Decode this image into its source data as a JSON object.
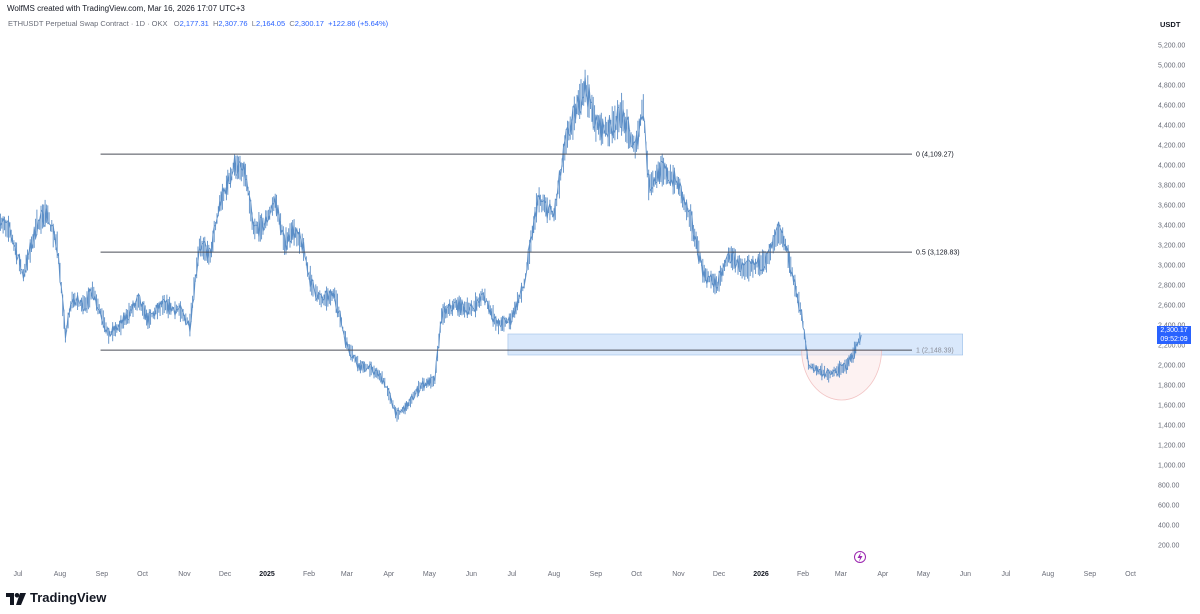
{
  "header": {
    "author_line": "WolfMS created with TradingView.com, Mar 16, 2026 17:07 UTC+3",
    "symbol": "ETHUSDT Perpetual Swap Contract · 1D · OKX",
    "ohlc": {
      "o_label": "O",
      "o": "2,177.31",
      "h_label": "H",
      "h": "2,307.76",
      "l_label": "L",
      "l": "2,164.05",
      "c_label": "C",
      "c": "2,300.17",
      "change": "+122.86 (+5.64%)"
    },
    "currency": "USDT"
  },
  "price_tag": {
    "price": "2,300.17",
    "countdown": "09:52:09",
    "value": 2300.17
  },
  "footer": {
    "brand": "TradingView"
  },
  "colors": {
    "candle": "#5b8ec7",
    "candle_dark": "#6f7f94",
    "zone": "#cfe2fa",
    "arc": "#f2c4c4",
    "accent": "#2962ff"
  },
  "chart_data": {
    "type": "line",
    "title": "",
    "xlabel": "",
    "ylabel": "",
    "ylim": [
      0,
      5300
    ],
    "y_ticks": [
      "5,200.00",
      "5,000.00",
      "4,800.00",
      "4,600.00",
      "4,400.00",
      "4,200.00",
      "4,000.00",
      "3,800.00",
      "3,600.00",
      "3,400.00",
      "3,200.00",
      "3,000.00",
      "2,800.00",
      "2,600.00",
      "2,400.00",
      "2,200.00",
      "2,000.00",
      "1,800.00",
      "1,600.00",
      "1,400.00",
      "1,200.00",
      "1,000.00",
      "800.00",
      "600.00",
      "400.00",
      "200.00"
    ],
    "x_ticks": [
      {
        "label": "Jul",
        "x": "2024-07-01",
        "bold": false
      },
      {
        "label": "Aug",
        "x": "2024-08-01",
        "bold": false
      },
      {
        "label": "Sep",
        "x": "2024-09-01",
        "bold": false
      },
      {
        "label": "Oct",
        "x": "2024-10-01",
        "bold": false
      },
      {
        "label": "Nov",
        "x": "2024-11-01",
        "bold": false
      },
      {
        "label": "Dec",
        "x": "2024-12-01",
        "bold": false
      },
      {
        "label": "2025",
        "x": "2025-01-01",
        "bold": true
      },
      {
        "label": "Feb",
        "x": "2025-02-01",
        "bold": false
      },
      {
        "label": "Mar",
        "x": "2025-03-01",
        "bold": false
      },
      {
        "label": "Apr",
        "x": "2025-04-01",
        "bold": false
      },
      {
        "label": "May",
        "x": "2025-05-01",
        "bold": false
      },
      {
        "label": "Jun",
        "x": "2025-06-01",
        "bold": false
      },
      {
        "label": "Jul",
        "x": "2025-07-01",
        "bold": false
      },
      {
        "label": "Aug",
        "x": "2025-08-01",
        "bold": false
      },
      {
        "label": "Sep",
        "x": "2025-09-01",
        "bold": false
      },
      {
        "label": "Oct",
        "x": "2025-10-01",
        "bold": false
      },
      {
        "label": "Nov",
        "x": "2025-11-01",
        "bold": false
      },
      {
        "label": "Dec",
        "x": "2025-12-01",
        "bold": false
      },
      {
        "label": "2026",
        "x": "2026-01-01",
        "bold": true
      },
      {
        "label": "Feb",
        "x": "2026-02-01",
        "bold": false
      },
      {
        "label": "Mar",
        "x": "2026-03-01",
        "bold": false
      },
      {
        "label": "Apr",
        "x": "2026-04-01",
        "bold": false
      },
      {
        "label": "May",
        "x": "2026-05-01",
        "bold": false
      },
      {
        "label": "Jun",
        "x": "2026-06-01",
        "bold": false
      },
      {
        "label": "Jul",
        "x": "2026-07-01",
        "bold": false
      },
      {
        "label": "Aug",
        "x": "2026-08-01",
        "bold": false
      },
      {
        "label": "Sep",
        "x": "2026-09-01",
        "bold": false
      },
      {
        "label": "Oct",
        "x": "2026-10-01",
        "bold": false
      }
    ],
    "series": [
      {
        "points": [
          [
            "2024-06-16",
            3450
          ],
          [
            "2024-06-25",
            3350
          ],
          [
            "2024-07-05",
            2900
          ],
          [
            "2024-07-15",
            3400
          ],
          [
            "2024-07-22",
            3520
          ],
          [
            "2024-07-30",
            3200
          ],
          [
            "2024-08-05",
            2300
          ],
          [
            "2024-08-10",
            2650
          ],
          [
            "2024-08-20",
            2600
          ],
          [
            "2024-08-25",
            2750
          ],
          [
            "2024-09-06",
            2300
          ],
          [
            "2024-09-15",
            2400
          ],
          [
            "2024-09-28",
            2650
          ],
          [
            "2024-10-05",
            2450
          ],
          [
            "2024-10-15",
            2600
          ],
          [
            "2024-10-28",
            2550
          ],
          [
            "2024-11-05",
            2400
          ],
          [
            "2024-11-12",
            3200
          ],
          [
            "2024-11-20",
            3100
          ],
          [
            "2024-11-27",
            3600
          ],
          [
            "2024-12-08",
            4000
          ],
          [
            "2024-12-16",
            3900
          ],
          [
            "2024-12-22",
            3350
          ],
          [
            "2024-12-30",
            3400
          ],
          [
            "2025-01-07",
            3650
          ],
          [
            "2025-01-14",
            3200
          ],
          [
            "2025-01-20",
            3350
          ],
          [
            "2025-01-27",
            3200
          ],
          [
            "2025-02-03",
            2800
          ],
          [
            "2025-02-10",
            2650
          ],
          [
            "2025-02-20",
            2700
          ],
          [
            "2025-03-01",
            2200
          ],
          [
            "2025-03-10",
            2000
          ],
          [
            "2025-03-20",
            1950
          ],
          [
            "2025-03-28",
            1850
          ],
          [
            "2025-04-07",
            1500
          ],
          [
            "2025-04-15",
            1600
          ],
          [
            "2025-04-25",
            1800
          ],
          [
            "2025-05-05",
            1850
          ],
          [
            "2025-05-10",
            2500
          ],
          [
            "2025-05-20",
            2600
          ],
          [
            "2025-06-01",
            2550
          ],
          [
            "2025-06-10",
            2700
          ],
          [
            "2025-06-20",
            2400
          ],
          [
            "2025-06-30",
            2450
          ],
          [
            "2025-07-10",
            2800
          ],
          [
            "2025-07-20",
            3650
          ],
          [
            "2025-08-01",
            3500
          ],
          [
            "2025-08-10",
            4250
          ],
          [
            "2025-08-24",
            4800
          ],
          [
            "2025-09-01",
            4400
          ],
          [
            "2025-09-10",
            4350
          ],
          [
            "2025-09-20",
            4500
          ],
          [
            "2025-09-30",
            4150
          ],
          [
            "2025-10-06",
            4600
          ],
          [
            "2025-10-10",
            3800
          ],
          [
            "2025-10-20",
            3950
          ],
          [
            "2025-11-01",
            3800
          ],
          [
            "2025-11-10",
            3450
          ],
          [
            "2025-11-20",
            2900
          ],
          [
            "2025-11-30",
            2800
          ],
          [
            "2025-12-08",
            3100
          ],
          [
            "2025-12-20",
            2950
          ],
          [
            "2026-01-05",
            3050
          ],
          [
            "2026-01-14",
            3350
          ],
          [
            "2026-01-20",
            3150
          ],
          [
            "2026-01-31",
            2500
          ],
          [
            "2026-02-05",
            2000
          ],
          [
            "2026-02-12",
            1950
          ],
          [
            "2026-02-20",
            1900
          ],
          [
            "2026-02-28",
            1950
          ],
          [
            "2026-03-05",
            2000
          ],
          [
            "2026-03-10",
            2100
          ],
          [
            "2026-03-16",
            2300.17
          ]
        ]
      }
    ],
    "fib_levels": [
      {
        "label": "0 (4,109.27)",
        "value": 4109.27,
        "start": "2024-08-31"
      },
      {
        "label": "0.5 (3,128.83)",
        "value": 3128.83,
        "start": "2024-08-31"
      },
      {
        "label": "1 (2,148.39)",
        "value": 2148.39,
        "start": "2024-08-31"
      }
    ],
    "demand_zone": {
      "y_low": 2100,
      "y_high": 2310,
      "x_start": "2025-06-28",
      "x_end": "2026-05-30"
    },
    "rounding_bottom": {
      "x_start": "2026-01-31",
      "x_end": "2026-03-31",
      "top": 2148,
      "bottom": 1650
    }
  }
}
